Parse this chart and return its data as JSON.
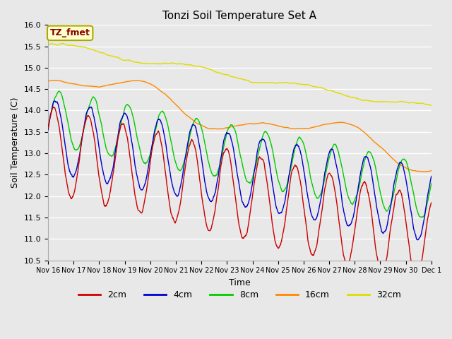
{
  "title": "Tonzi Soil Temperature Set A",
  "xlabel": "Time",
  "ylabel": "Soil Temperature (C)",
  "ylim": [
    10.5,
    16.0
  ],
  "yticks": [
    10.5,
    11.0,
    11.5,
    12.0,
    12.5,
    13.0,
    13.5,
    14.0,
    14.5,
    15.0,
    15.5,
    16.0
  ],
  "colors": {
    "2cm": "#cc0000",
    "4cm": "#0000cc",
    "8cm": "#00cc00",
    "16cm": "#ff8800",
    "32cm": "#dddd00"
  },
  "legend_labels": [
    "2cm",
    "4cm",
    "8cm",
    "16cm",
    "32cm"
  ],
  "annotation_text": "TZ_fmet",
  "annotation_color": "#880000",
  "annotation_bg": "#ffffcc",
  "annotation_border": "#aaaa00",
  "background_color": "#e8e8e8",
  "x_tick_labels": [
    "Nov 16",
    "Nov 17",
    "Nov 18",
    "Nov 19",
    "Nov 20",
    "Nov 21",
    "Nov 22",
    "Nov 23",
    "Nov 24",
    "Nov 25",
    "Nov 26",
    "Nov 27",
    "Nov 28",
    "Nov 29",
    "Nov 30",
    "Dec 1"
  ],
  "n_points": 1440,
  "period_days": 1.35,
  "period_16cm_days": 4.5
}
